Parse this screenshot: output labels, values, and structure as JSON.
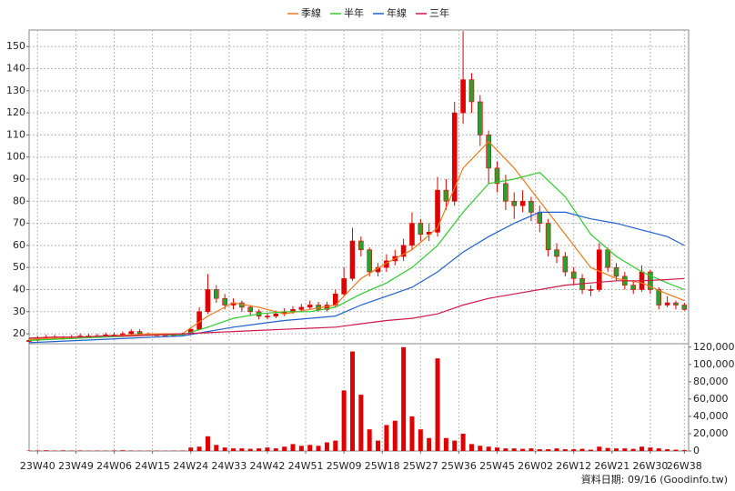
{
  "chart_data": [
    {
      "type": "candlestick",
      "legend": "top",
      "up_color": "#e00000",
      "down_color": "#2e9e2e",
      "grid": true,
      "xlim": [
        0,
        155
      ],
      "ylim": [
        15.5,
        157.5
      ],
      "yticks": [
        20,
        30,
        40,
        50,
        60,
        70,
        80,
        90,
        100,
        110,
        120,
        130,
        140,
        150
      ],
      "xticks": [
        {
          "value": 2,
          "label": "23W40"
        },
        {
          "value": 11,
          "label": "23W49"
        },
        {
          "value": 20,
          "label": "24W06"
        },
        {
          "value": 29,
          "label": "24W15"
        },
        {
          "value": 38,
          "label": "24W24"
        },
        {
          "value": 47,
          "label": "24W33"
        },
        {
          "value": 56,
          "label": "24W42"
        },
        {
          "value": 65,
          "label": "24W51"
        },
        {
          "value": 74,
          "label": "25W09"
        },
        {
          "value": 83,
          "label": "25W18"
        },
        {
          "value": 92,
          "label": "25W27"
        },
        {
          "value": 101,
          "label": "25W36"
        },
        {
          "value": 110,
          "label": "25W45"
        },
        {
          "value": 119,
          "label": "26W02"
        },
        {
          "value": 128,
          "label": "26W12"
        },
        {
          "value": 137,
          "label": "26W21"
        },
        {
          "value": 146,
          "label": "26W30"
        },
        {
          "value": 154,
          "label": "26W38"
        }
      ],
      "x": [
        0,
        2,
        4,
        6,
        8,
        10,
        12,
        14,
        16,
        18,
        20,
        22,
        24,
        26,
        28,
        30,
        32,
        34,
        36,
        38,
        40,
        42,
        44,
        46,
        48,
        50,
        52,
        54,
        56,
        58,
        60,
        62,
        64,
        66,
        68,
        70,
        72,
        74,
        76,
        78,
        80,
        82,
        84,
        86,
        88,
        90,
        92,
        94,
        96,
        98,
        100,
        102,
        104,
        106,
        108,
        110,
        112,
        114,
        116,
        118,
        120,
        122,
        124,
        126,
        128,
        130,
        132,
        134,
        136,
        138,
        140,
        142,
        144,
        146,
        148,
        150,
        152,
        154
      ],
      "open": [
        16.5,
        17,
        18,
        18.5,
        18,
        18,
        18.5,
        19,
        19,
        19,
        19.5,
        19,
        20,
        21,
        20,
        19.5,
        19.5,
        19.5,
        19.5,
        20,
        22,
        30,
        40,
        36,
        33,
        34,
        32,
        30,
        28,
        28,
        29,
        30,
        31,
        32,
        33,
        31,
        33,
        38,
        45,
        62,
        58,
        48,
        50,
        53,
        55,
        60,
        70,
        65,
        66,
        85,
        80,
        120,
        135,
        125,
        110,
        95,
        88,
        80,
        78,
        80,
        75,
        70,
        58,
        55,
        48,
        45,
        40,
        40,
        58,
        50,
        46,
        42,
        40,
        48,
        40,
        33,
        34,
        33
      ],
      "high": [
        18,
        19,
        19.5,
        19.5,
        19,
        19.5,
        20,
        20,
        20,
        20.5,
        20.5,
        21,
        22,
        22,
        20.5,
        20,
        20,
        20,
        20.5,
        23,
        32,
        47,
        42,
        38,
        36,
        35,
        33,
        31,
        29.5,
        30.5,
        31.5,
        32.5,
        33.5,
        35,
        34.5,
        34.5,
        40,
        50,
        68,
        64,
        59,
        52,
        56,
        58,
        63,
        75,
        72,
        70,
        91,
        90,
        125,
        157,
        138,
        128,
        112,
        98,
        92,
        84,
        85,
        82,
        78,
        72,
        61,
        57,
        50,
        47,
        42,
        61,
        59,
        52,
        48,
        44,
        51,
        49,
        41,
        37,
        35,
        34
      ],
      "low": [
        16,
        16.5,
        17.5,
        17.5,
        17.5,
        17.5,
        18,
        18.5,
        18.5,
        18.5,
        18.5,
        18.5,
        19.5,
        19.5,
        19,
        19,
        19,
        19,
        19,
        19.5,
        21.5,
        29,
        34,
        31,
        31,
        30,
        28,
        26.5,
        26.5,
        27,
        28,
        29,
        30,
        31,
        30,
        30,
        32,
        37,
        44,
        55,
        46,
        46,
        48,
        51,
        53,
        58,
        62,
        62,
        64,
        76,
        78,
        115,
        120,
        105,
        88,
        84,
        76,
        72,
        75,
        71,
        66,
        55,
        52,
        46,
        42,
        38,
        37,
        39,
        48,
        44,
        40,
        38,
        39,
        38,
        31,
        32,
        31,
        30.5
      ],
      "close": [
        17,
        18,
        18.5,
        18,
        18,
        18.5,
        19,
        19,
        19,
        19.5,
        19,
        20,
        21,
        20,
        19.5,
        19.5,
        19.5,
        19.5,
        20,
        22,
        30,
        40,
        36,
        33,
        34,
        32,
        30,
        28,
        28,
        29,
        30,
        31,
        32,
        33,
        31,
        33,
        38,
        45,
        62,
        58,
        48,
        50,
        53,
        55,
        60,
        70,
        65,
        66,
        85,
        80,
        120,
        135,
        125,
        110,
        95,
        88,
        80,
        78,
        80,
        75,
        70,
        58,
        55,
        48,
        45,
        40,
        40,
        58,
        50,
        46,
        42,
        40,
        48,
        40,
        33,
        34,
        33,
        31
      ],
      "series": [
        {
          "name": "季線",
          "color": "#f07818",
          "x": [
            0,
            6,
            12,
            18,
            24,
            30,
            36,
            42,
            48,
            54,
            60,
            66,
            72,
            78,
            84,
            90,
            96,
            102,
            108,
            114,
            120,
            126,
            132,
            138,
            144,
            150,
            154
          ],
          "values": [
            17.5,
            18,
            18.5,
            19,
            19.5,
            20,
            20,
            28,
            34,
            32,
            29,
            31,
            33,
            45,
            52,
            58,
            68,
            95,
            107,
            95,
            80,
            65,
            50,
            45,
            43,
            38,
            35
          ]
        },
        {
          "name": "半年",
          "color": "#2ecc2e",
          "x": [
            0,
            6,
            12,
            18,
            24,
            30,
            36,
            42,
            48,
            54,
            60,
            66,
            72,
            78,
            84,
            90,
            96,
            102,
            108,
            114,
            120,
            126,
            132,
            138,
            144,
            150,
            154
          ],
          "values": [
            17,
            17.5,
            18,
            18.5,
            19,
            19.5,
            19.5,
            23,
            27,
            29,
            30,
            30,
            32,
            38,
            43,
            50,
            60,
            75,
            88,
            90,
            93,
            82,
            65,
            55,
            48,
            43,
            40
          ]
        },
        {
          "name": "年線",
          "color": "#2060d0",
          "x": [
            0,
            6,
            12,
            18,
            24,
            30,
            36,
            42,
            48,
            54,
            60,
            66,
            72,
            78,
            84,
            90,
            96,
            102,
            108,
            114,
            120,
            126,
            132,
            138,
            144,
            150,
            154
          ],
          "values": [
            16,
            16.5,
            17,
            17.5,
            18,
            18.5,
            19,
            21,
            23,
            24.5,
            26,
            27,
            28,
            33,
            37,
            41,
            48,
            57,
            64,
            70,
            75,
            75,
            72,
            70,
            67,
            64,
            60
          ]
        },
        {
          "name": "三年",
          "color": "#d0184a",
          "x": [
            0,
            6,
            12,
            18,
            24,
            30,
            36,
            42,
            48,
            54,
            60,
            66,
            72,
            78,
            84,
            90,
            96,
            102,
            108,
            114,
            120,
            126,
            132,
            138,
            144,
            150,
            154
          ],
          "values": [
            18,
            18.5,
            18.5,
            19,
            19,
            19.5,
            20,
            20.5,
            21,
            21.5,
            22,
            22.5,
            23,
            24.5,
            26,
            27,
            29,
            33,
            36,
            38,
            40,
            42,
            43,
            44,
            44,
            44.5,
            45
          ]
        }
      ]
    },
    {
      "type": "bar",
      "color": "#e00000",
      "xlim": [
        0,
        155
      ],
      "ylim": [
        0,
        124000
      ],
      "yticks": [
        0,
        {
          "value": 20000,
          "label": "20,000"
        },
        {
          "value": 40000,
          "label": "40,000"
        },
        {
          "value": 60000,
          "label": "60,000"
        },
        {
          "value": 80000,
          "label": "80,000"
        },
        {
          "value": 100000,
          "label": "100,000"
        },
        {
          "value": 120000,
          "label": "120,000"
        }
      ],
      "x": [
        0,
        2,
        4,
        6,
        8,
        10,
        12,
        14,
        16,
        18,
        20,
        22,
        24,
        26,
        28,
        30,
        32,
        34,
        36,
        38,
        40,
        42,
        44,
        46,
        48,
        50,
        52,
        54,
        56,
        58,
        60,
        62,
        64,
        66,
        68,
        70,
        72,
        74,
        76,
        78,
        80,
        82,
        84,
        86,
        88,
        90,
        92,
        94,
        96,
        98,
        100,
        102,
        104,
        106,
        108,
        110,
        112,
        114,
        116,
        118,
        120,
        122,
        124,
        126,
        128,
        130,
        132,
        134,
        136,
        138,
        140,
        142,
        144,
        146,
        148,
        150,
        152,
        154
      ],
      "values": [
        500,
        600,
        800,
        500,
        700,
        500,
        600,
        400,
        500,
        400,
        600,
        800,
        500,
        400,
        400,
        400,
        300,
        400,
        500,
        4000,
        5000,
        17000,
        7000,
        4000,
        3000,
        3000,
        2500,
        3000,
        4000,
        3000,
        5000,
        8000,
        6000,
        7000,
        6000,
        10000,
        12000,
        70000,
        115000,
        65000,
        25000,
        12000,
        30000,
        35000,
        120000,
        40000,
        25000,
        15000,
        107000,
        15000,
        12000,
        20000,
        8000,
        6000,
        5000,
        4000,
        3000,
        3000,
        2500,
        3000,
        2000,
        2000,
        3000,
        2000,
        2000,
        2500,
        1500,
        5000,
        3500,
        3000,
        3000,
        2500,
        5000,
        4000,
        3000,
        2000,
        1500,
        1000
      ]
    }
  ],
  "footer": "資料日期: 09/16 (Goodinfo.tw)"
}
